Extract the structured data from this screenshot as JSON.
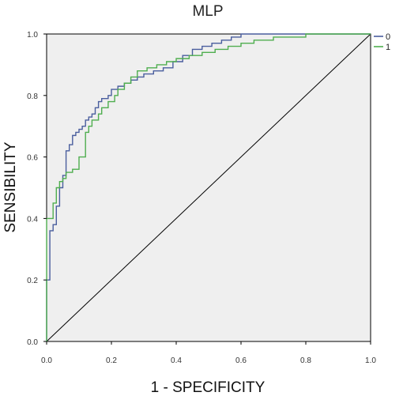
{
  "chart_data": {
    "type": "line",
    "title": "MLP",
    "xlabel": "1 - SPECIFICITY",
    "ylabel": "SENSIBILITY",
    "xlim": [
      0,
      1
    ],
    "ylim": [
      0,
      1
    ],
    "xticks": [
      "0.0",
      "0.2",
      "0.4",
      "0.6",
      "0.8",
      "1.0"
    ],
    "yticks": [
      "0.0",
      "0.2",
      "0.4",
      "0.6",
      "0.8",
      "1.0"
    ],
    "grid": false,
    "legend_position": "top-right",
    "reference_line": {
      "x": [
        0,
        1
      ],
      "y": [
        0,
        1
      ],
      "color": "#000000"
    },
    "series": [
      {
        "name": "0",
        "color": "#4a5e9e",
        "x": [
          0,
          0,
          0.01,
          0.01,
          0.02,
          0.02,
          0.03,
          0.03,
          0.04,
          0.04,
          0.05,
          0.05,
          0.06,
          0.06,
          0.07,
          0.07,
          0.08,
          0.08,
          0.09,
          0.09,
          0.1,
          0.1,
          0.11,
          0.11,
          0.12,
          0.12,
          0.13,
          0.13,
          0.14,
          0.14,
          0.15,
          0.15,
          0.16,
          0.16,
          0.17,
          0.17,
          0.19,
          0.19,
          0.2,
          0.2,
          0.22,
          0.22,
          0.24,
          0.24,
          0.26,
          0.26,
          0.28,
          0.28,
          0.3,
          0.3,
          0.33,
          0.33,
          0.36,
          0.36,
          0.39,
          0.39,
          0.42,
          0.42,
          0.45,
          0.45,
          0.48,
          0.48,
          0.51,
          0.51,
          0.54,
          0.54,
          0.57,
          0.57,
          0.6,
          0.6,
          0.62,
          0.62,
          0.8,
          1.0
        ],
        "y": [
          0,
          0.2,
          0.2,
          0.36,
          0.36,
          0.38,
          0.38,
          0.44,
          0.44,
          0.5,
          0.5,
          0.54,
          0.54,
          0.62,
          0.62,
          0.64,
          0.64,
          0.67,
          0.67,
          0.68,
          0.68,
          0.69,
          0.69,
          0.7,
          0.7,
          0.72,
          0.72,
          0.73,
          0.73,
          0.74,
          0.74,
          0.76,
          0.76,
          0.78,
          0.78,
          0.79,
          0.79,
          0.8,
          0.8,
          0.82,
          0.82,
          0.83,
          0.83,
          0.84,
          0.84,
          0.85,
          0.85,
          0.86,
          0.86,
          0.87,
          0.87,
          0.88,
          0.88,
          0.89,
          0.89,
          0.91,
          0.91,
          0.93,
          0.93,
          0.95,
          0.95,
          0.96,
          0.96,
          0.97,
          0.97,
          0.98,
          0.98,
          0.99,
          0.99,
          1.0,
          1.0,
          1.0,
          1.0,
          1.0
        ]
      },
      {
        "name": "1",
        "color": "#4fae4f",
        "x": [
          0,
          0,
          0.02,
          0.02,
          0.03,
          0.03,
          0.04,
          0.04,
          0.05,
          0.05,
          0.06,
          0.06,
          0.08,
          0.08,
          0.1,
          0.1,
          0.12,
          0.12,
          0.13,
          0.13,
          0.14,
          0.14,
          0.16,
          0.16,
          0.17,
          0.17,
          0.19,
          0.19,
          0.21,
          0.21,
          0.22,
          0.22,
          0.24,
          0.24,
          0.26,
          0.26,
          0.28,
          0.28,
          0.31,
          0.31,
          0.34,
          0.34,
          0.37,
          0.37,
          0.4,
          0.4,
          0.44,
          0.44,
          0.48,
          0.48,
          0.52,
          0.52,
          0.56,
          0.56,
          0.6,
          0.6,
          0.64,
          0.64,
          0.7,
          0.7,
          0.8,
          0.8,
          1.0
        ],
        "y": [
          0,
          0.4,
          0.4,
          0.45,
          0.45,
          0.5,
          0.5,
          0.52,
          0.52,
          0.53,
          0.53,
          0.55,
          0.55,
          0.56,
          0.56,
          0.6,
          0.6,
          0.68,
          0.68,
          0.7,
          0.7,
          0.72,
          0.72,
          0.74,
          0.74,
          0.76,
          0.76,
          0.78,
          0.78,
          0.8,
          0.8,
          0.82,
          0.82,
          0.84,
          0.84,
          0.86,
          0.86,
          0.88,
          0.88,
          0.89,
          0.89,
          0.9,
          0.9,
          0.91,
          0.91,
          0.92,
          0.92,
          0.93,
          0.93,
          0.94,
          0.94,
          0.95,
          0.95,
          0.96,
          0.96,
          0.97,
          0.97,
          0.98,
          0.98,
          0.99,
          0.99,
          1.0,
          1.0
        ]
      }
    ]
  }
}
